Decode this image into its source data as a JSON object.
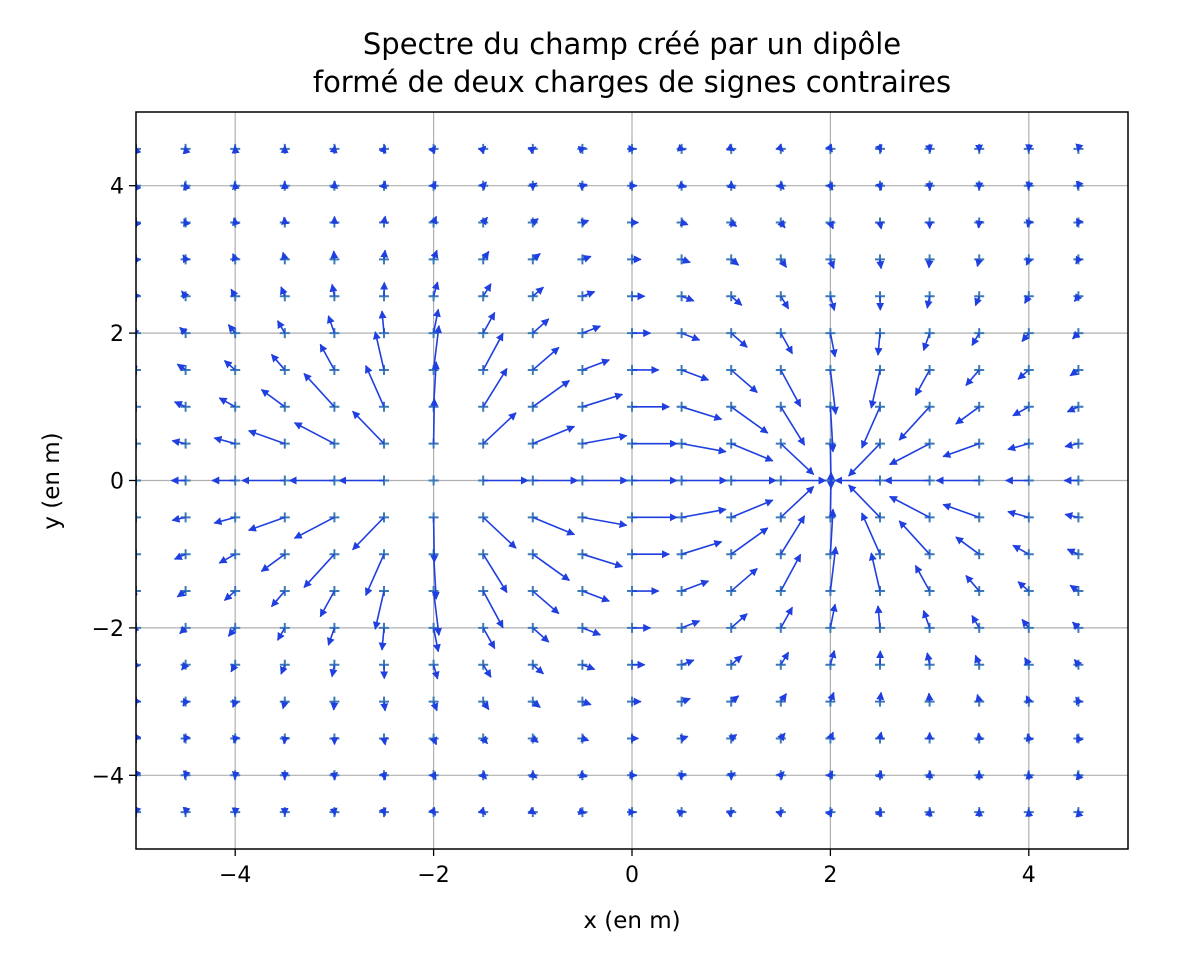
{
  "chart_data": {
    "type": "quiver",
    "title_line1": "Spectre du champ créé par un dipôle",
    "title_line2": "formé de deux charges de signes contraires",
    "xlabel": "x (en m)",
    "ylabel": "y (en m)",
    "xlim": [
      -5,
      5
    ],
    "ylim": [
      -5,
      5
    ],
    "xticks": [
      -4,
      -2,
      0,
      2,
      4
    ],
    "yticks": [
      -4,
      -2,
      0,
      2,
      4
    ],
    "xtick_labels": [
      "−4",
      "−2",
      "0",
      "2",
      "4"
    ],
    "ytick_labels": [
      "−4",
      "−2",
      "0",
      "2",
      "4"
    ],
    "grid": true,
    "grid_x_range": [
      -5,
      4.5
    ],
    "grid_y_range": [
      -4.5,
      4.5
    ],
    "grid_step": 0.5,
    "charges": [
      {
        "sign": "+",
        "q": 1,
        "x": -2,
        "y": 0
      },
      {
        "sign": "-",
        "q": -1,
        "x": 2,
        "y": 0
      }
    ],
    "grid_marker": "+",
    "colors": {
      "arrows": "#1f3fe0",
      "markers": "#3c7ab8",
      "grid": "#b0b0b0"
    }
  }
}
